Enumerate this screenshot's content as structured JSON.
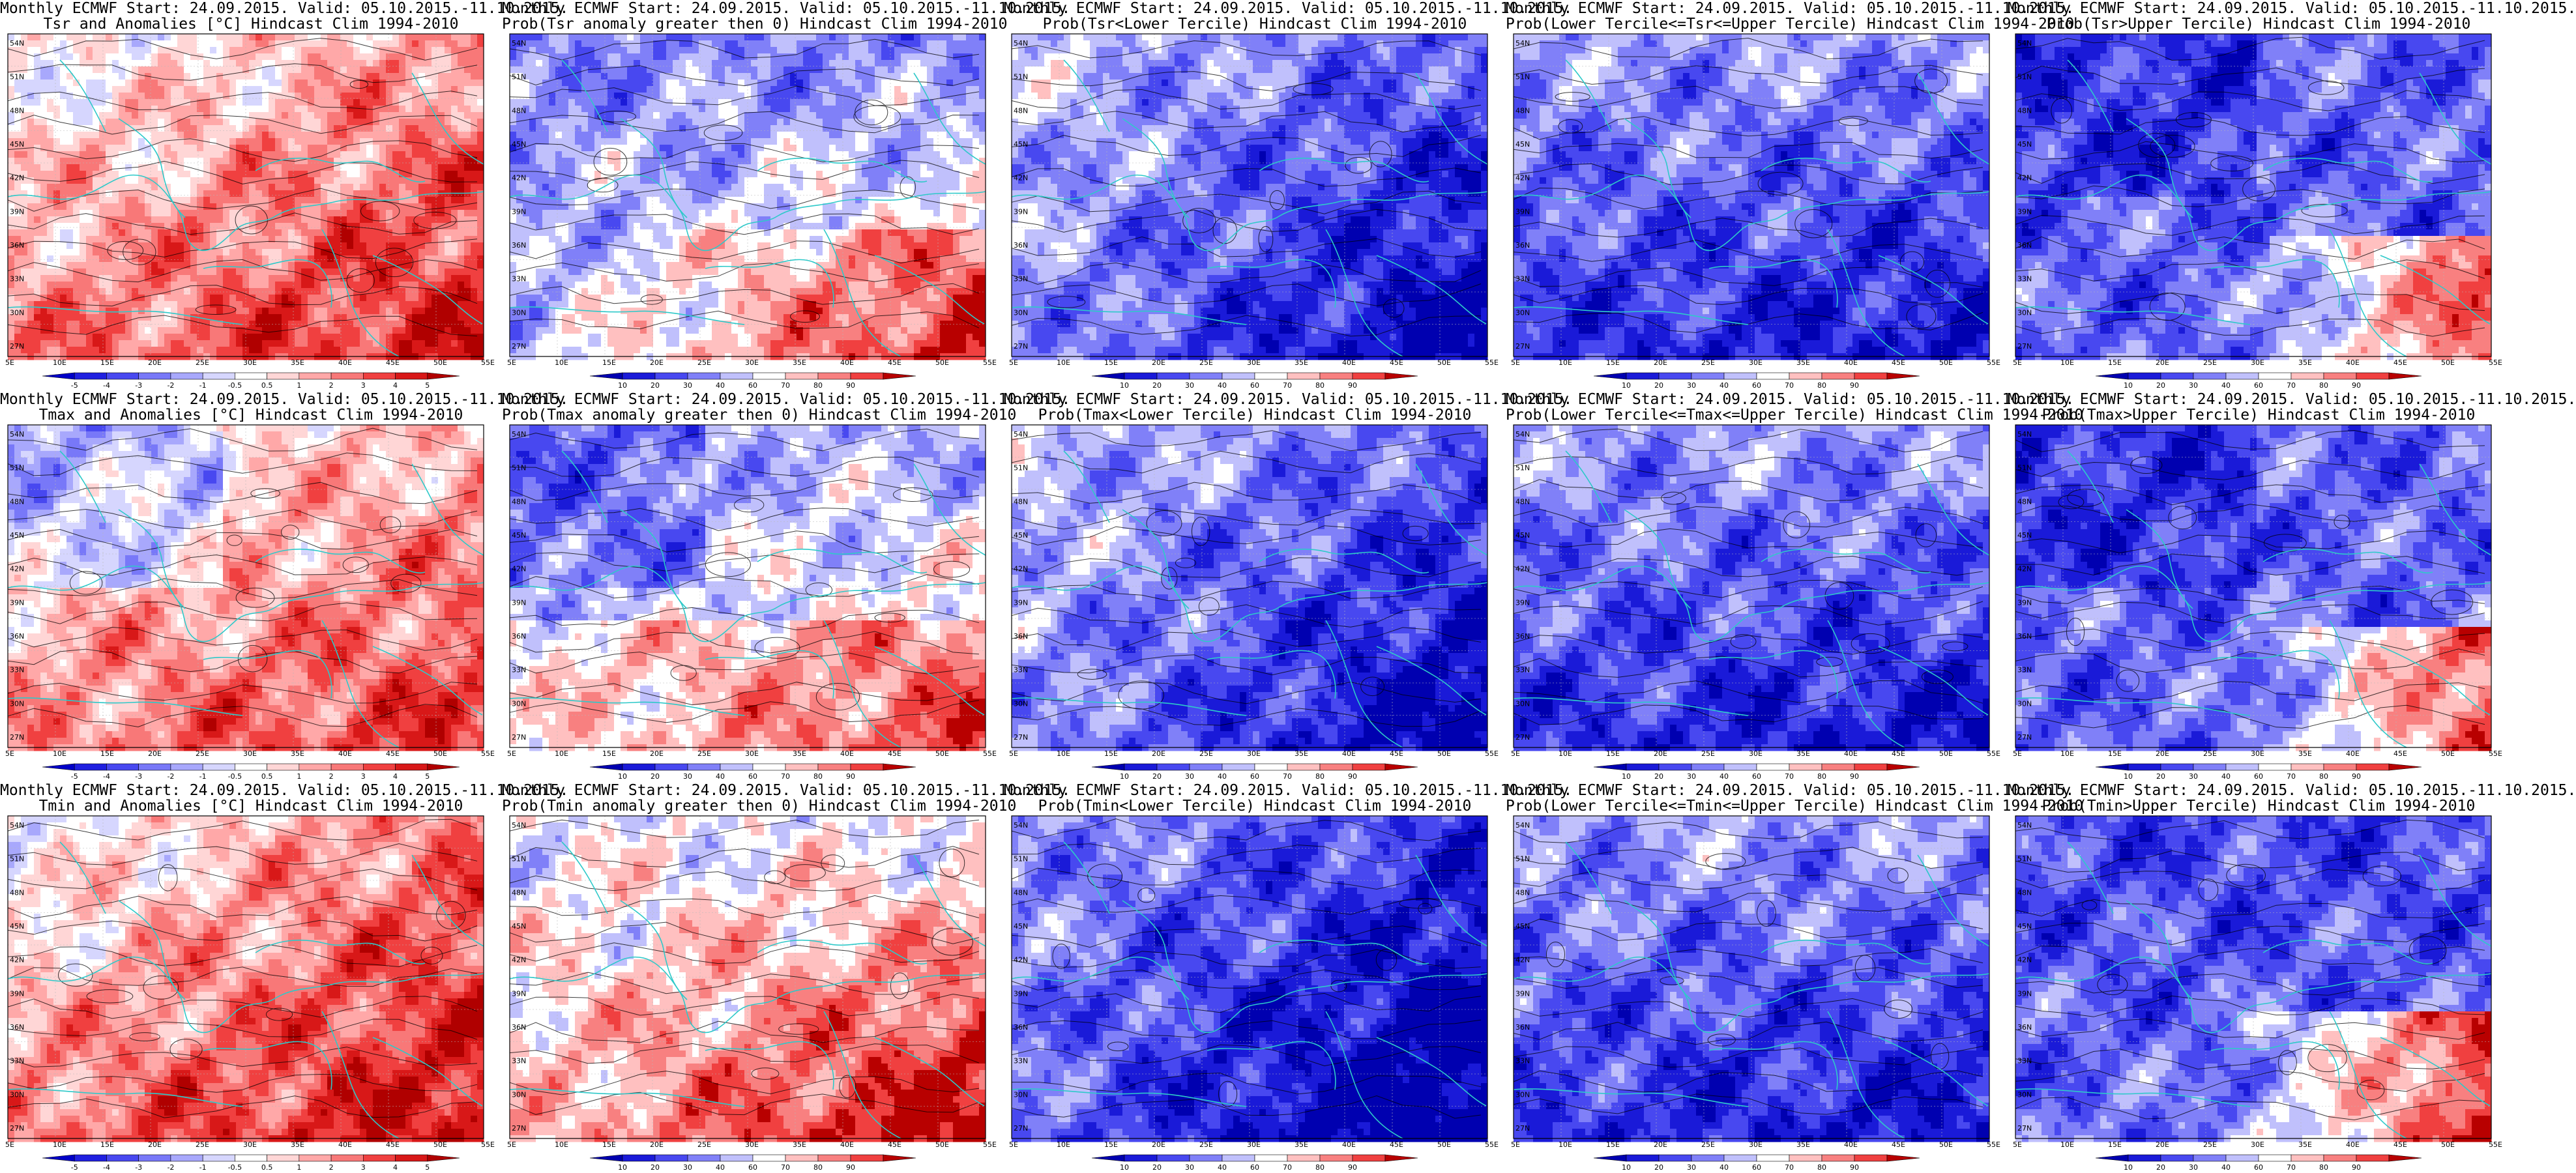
{
  "lat_labels": [
    "54N",
    "51N",
    "48N",
    "45N",
    "42N",
    "39N",
    "36N",
    "33N",
    "30N",
    "27N"
  ],
  "lon_labels": [
    "5E",
    "10E",
    "15E",
    "20E",
    "25E",
    "30E",
    "35E",
    "40E",
    "45E",
    "50E",
    "55E"
  ],
  "anomaly_bins": [
    "-5",
    "-4",
    "-3",
    "-2",
    "-1",
    "-0.5",
    "0.5",
    "1",
    "2",
    "3",
    "4",
    "5"
  ],
  "prob_bins": [
    "10",
    "20",
    "30",
    "40",
    "60",
    "70",
    "80",
    "90"
  ],
  "colors": {
    "coast": "#2ec9c9",
    "contour": "#000000",
    "blue_dark": "#1a1ac8",
    "red_dark": "#b80000"
  },
  "rows": [
    {
      "variable": "Tsr",
      "panels": [
        {
          "title1": "Monthly ECMWF Start: 24.09.2015. Valid: 05.10.2015.-11.10.2015.",
          "title2": "Tsr and Anomalies [°C] Hindcast Clim 1994-2010",
          "kind": "anomaly",
          "pattern": "anom_t"
        },
        {
          "title1": "Monthly ECMWF Start: 24.09.2015. Valid: 05.10.2015.-11.10.2015.",
          "title2": "Prob(Tsr anomaly greater then 0) Hindcast Clim 1994-2010",
          "kind": "prob",
          "pattern": "prob_pos"
        },
        {
          "title1": "Monthly ECMWF Start: 24.09.2015. Valid: 05.10.2015.-11.10.2015.",
          "title2": "Prob(Tsr<Lower Tercile) Hindcast Clim 1994-2010",
          "kind": "prob",
          "pattern": "prob_lower"
        },
        {
          "title1": "Monthly ECMWF Start: 24.09.2015. Valid: 05.10.2015.-11.10.2015.",
          "title2": "Prob(Lower Tercile<=Tsr<=Upper Tercile) Hindcast Clim 1994-2010",
          "kind": "prob",
          "pattern": "prob_mid"
        },
        {
          "title1": "Monthly ECMWF Start: 24.09.2015. Valid: 05.10.2015.-11.10.2015.",
          "title2": "Prob(Tsr>Upper Tercile) Hindcast Clim 1994-2010",
          "kind": "prob",
          "pattern": "prob_upper"
        }
      ]
    },
    {
      "variable": "Tmax",
      "panels": [
        {
          "title1": "Monthly ECMWF Start: 24.09.2015. Valid: 05.10.2015.-11.10.2015.",
          "title2": "Tmax and Anomalies [°C] Hindcast Clim 1994-2010",
          "kind": "anomaly",
          "pattern": "anom_max"
        },
        {
          "title1": "Monthly ECMWF Start: 24.09.2015. Valid: 05.10.2015.-11.10.2015.",
          "title2": "Prob(Tmax anomaly greater then 0) Hindcast Clim 1994-2010",
          "kind": "prob",
          "pattern": "prob_pos_max"
        },
        {
          "title1": "Monthly ECMWF Start: 24.09.2015. Valid: 05.10.2015.-11.10.2015.",
          "title2": "Prob(Tmax<Lower Tercile) Hindcast Clim 1994-2010",
          "kind": "prob",
          "pattern": "prob_lower"
        },
        {
          "title1": "Monthly ECMWF Start: 24.09.2015. Valid: 05.10.2015.-11.10.2015.",
          "title2": "Prob(Lower Tercile<=Tmax<=Upper Tercile) Hindcast Clim 1994-2010",
          "kind": "prob",
          "pattern": "prob_mid"
        },
        {
          "title1": "Monthly ECMWF Start: 24.09.2015. Valid: 05.10.2015.-11.10.2015.",
          "title2": "Prob(Tmax>Upper Tercile) Hindcast Clim 1994-2010",
          "kind": "prob",
          "pattern": "prob_upper"
        }
      ]
    },
    {
      "variable": "Tmin",
      "panels": [
        {
          "title1": "Monthly ECMWF Start: 24.09.2015. Valid: 05.10.2015.-11.10.2015.",
          "title2": "Tmin and Anomalies [°C] Hindcast Clim 1994-2010",
          "kind": "anomaly",
          "pattern": "anom_min"
        },
        {
          "title1": "Monthly ECMWF Start: 24.09.2015. Valid: 05.10.2015.-11.10.2015.",
          "title2": "Prob(Tmin anomaly greater then 0) Hindcast Clim 1994-2010",
          "kind": "prob",
          "pattern": "prob_pos_min"
        },
        {
          "title1": "Monthly ECMWF Start: 24.09.2015. Valid: 05.10.2015.-11.10.2015.",
          "title2": "Prob(Tmin<Lower Tercile) Hindcast Clim 1994-2010",
          "kind": "prob",
          "pattern": "prob_lower_min"
        },
        {
          "title1": "Monthly ECMWF Start: 24.09.2015. Valid: 05.10.2015.-11.10.2015.",
          "title2": "Prob(Lower Tercile<=Tmin<=Upper Tercile) Hindcast Clim 1994-2010",
          "kind": "prob",
          "pattern": "prob_mid"
        },
        {
          "title1": "Monthly ECMWF Start: 24.09.2015. Valid: 05.10.2015.-11.10.2015.",
          "title2": "Prob(Tmin>Upper Tercile) Hindcast Clim 1994-2010",
          "kind": "prob",
          "pattern": "prob_upper_min"
        }
      ]
    }
  ]
}
